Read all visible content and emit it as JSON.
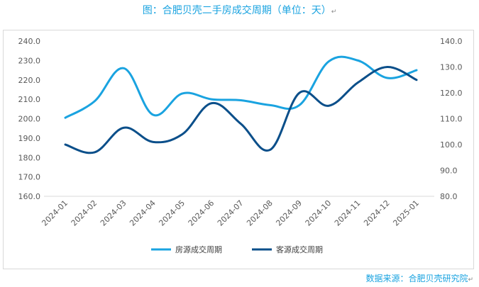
{
  "title": "图：合肥贝壳二手房成交周期（单位：天）",
  "source": "数据来源：合肥贝壳研究院",
  "return_mark": "↵",
  "chart_data": {
    "type": "line",
    "categories": [
      "2024-01",
      "2024-02",
      "2024-03",
      "2024-04",
      "2024-05",
      "2024-06",
      "2024-07",
      "2024-08",
      "2024-09",
      "2024-10",
      "2024-11",
      "2024-12",
      "2025-01"
    ],
    "series": [
      {
        "name": "房源成交周期",
        "axis": "left",
        "color": "#1AA3E0",
        "values": [
          200.5,
          209,
          226,
          202,
          213,
          210,
          209.5,
          207,
          207,
          229.5,
          230,
          221,
          225
        ]
      },
      {
        "name": "客源成交周期",
        "axis": "right",
        "color": "#0B4F8A",
        "values": [
          100,
          97,
          106.5,
          101,
          104,
          116,
          108,
          98,
          120,
          115,
          124,
          130,
          125
        ]
      }
    ],
    "yleft": {
      "min": 160,
      "max": 240,
      "ticks": [
        "240.0",
        "230.0",
        "220.0",
        "210.0",
        "200.0",
        "190.0",
        "180.0",
        "170.0",
        "160.0"
      ]
    },
    "yright": {
      "min": 80,
      "max": 140,
      "ticks": [
        "140.0",
        "130.0",
        "120.0",
        "110.0",
        "100.0",
        "90.0",
        "80.0"
      ]
    }
  }
}
